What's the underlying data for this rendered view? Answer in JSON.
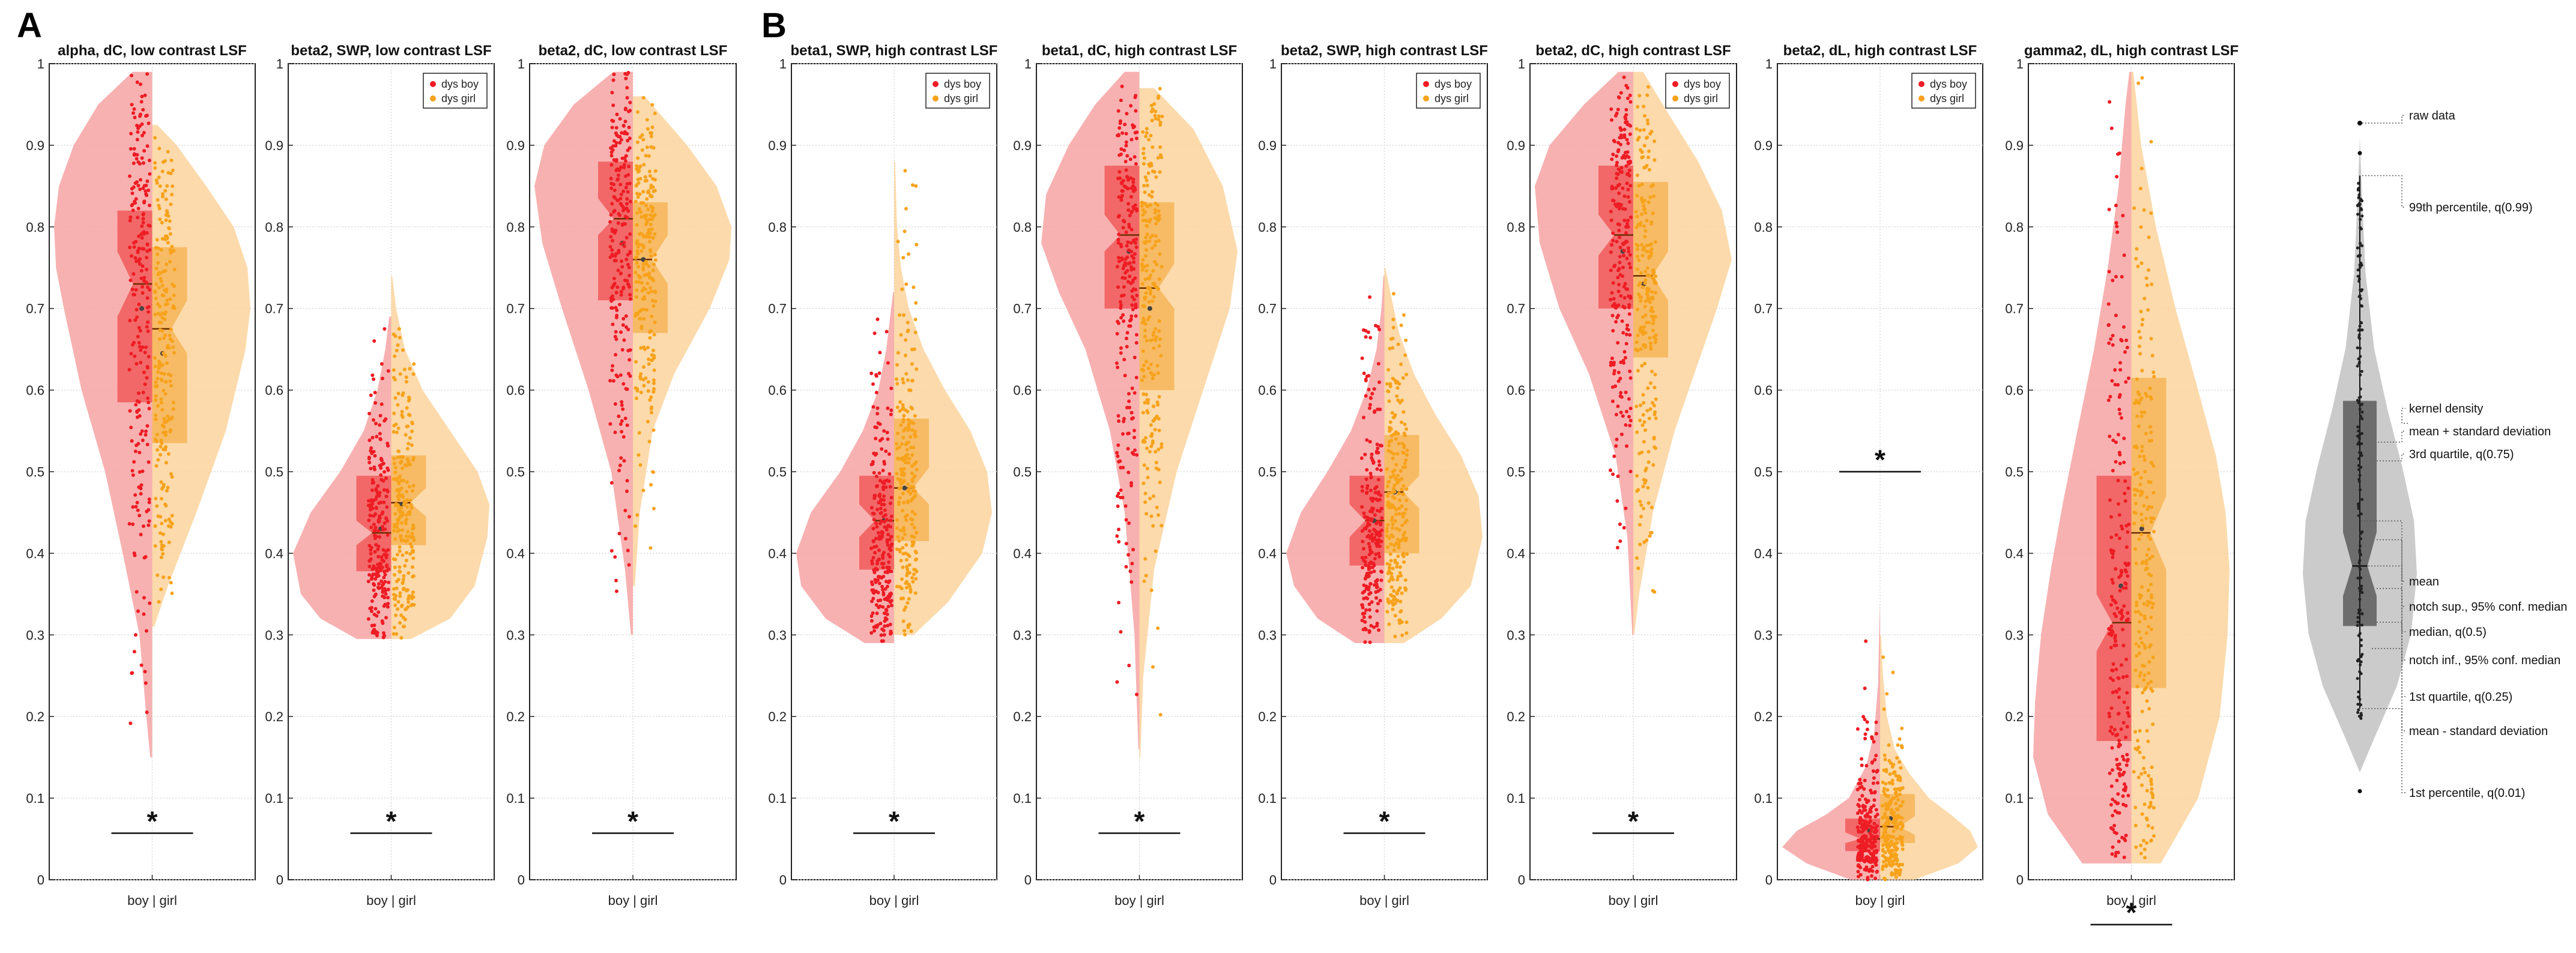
{
  "figure": {
    "panel_labels": [
      "A",
      "B"
    ]
  },
  "colors": {
    "boy": "#ee1c24",
    "girl": "#f7a21b",
    "boy_fill": "#f7a3a3",
    "girl_fill": "#fcd49c",
    "boy_box": "#f05050",
    "girl_box": "#f6b04e",
    "legend_gray": "#a9a9a9",
    "legend_dark": "#555555"
  },
  "chart_data": [
    {
      "type": "violin",
      "group": "A",
      "title": "alpha, dC, low contrast LSF",
      "xlabel": "boy | girl",
      "ylim": [
        0,
        1
      ],
      "yticks": [
        0,
        0.1,
        0.2,
        0.3,
        0.4,
        0.5,
        0.6,
        0.7,
        0.8,
        0.9,
        1
      ],
      "legend": false,
      "significance": {
        "label": "*",
        "y": 0.057
      },
      "series": [
        {
          "name": "dys boy",
          "q1": 0.585,
          "median": 0.73,
          "q3": 0.82,
          "notch_low": 0.69,
          "notch_high": 0.77,
          "mean": 0.7,
          "whisker_low": 0.35,
          "whisker_high": 0.97,
          "kde_y": [
            0.15,
            0.2,
            0.3,
            0.4,
            0.5,
            0.6,
            0.7,
            0.75,
            0.8,
            0.85,
            0.9,
            0.95,
            0.99
          ],
          "kde_w": [
            0.02,
            0.06,
            0.13,
            0.3,
            0.48,
            0.72,
            0.9,
            0.98,
            1,
            0.95,
            0.8,
            0.55,
            0.2
          ]
        },
        {
          "name": "dys girl",
          "q1": 0.535,
          "median": 0.675,
          "q3": 0.775,
          "notch_low": 0.645,
          "notch_high": 0.71,
          "mean": 0.645,
          "whisker_low": 0.3,
          "whisker_high": 0.93,
          "kde_y": [
            0.31,
            0.36,
            0.45,
            0.55,
            0.65,
            0.7,
            0.75,
            0.8,
            0.85,
            0.9,
            0.925
          ],
          "kde_w": [
            0.02,
            0.16,
            0.45,
            0.75,
            0.95,
            1,
            0.97,
            0.83,
            0.55,
            0.25,
            0.05
          ]
        }
      ]
    },
    {
      "type": "violin",
      "group": "A",
      "title": "beta2, SWP, low contrast LSF",
      "xlabel": "boy | girl",
      "ylim": [
        0,
        1
      ],
      "yticks": [
        0,
        0.1,
        0.2,
        0.3,
        0.4,
        0.5,
        0.6,
        0.7,
        0.8,
        0.9,
        1
      ],
      "legend": true,
      "significance": {
        "label": "*",
        "y": 0.057
      },
      "series": [
        {
          "name": "dys boy",
          "q1": 0.378,
          "median": 0.425,
          "q3": 0.495,
          "notch_low": 0.41,
          "notch_high": 0.44,
          "mean": 0.43,
          "whisker_low": 0.29,
          "whisker_high": 0.62,
          "kde_y": [
            0.295,
            0.32,
            0.35,
            0.4,
            0.45,
            0.5,
            0.55,
            0.6,
            0.65,
            0.69
          ],
          "kde_w": [
            0.35,
            0.72,
            0.92,
            1,
            0.82,
            0.52,
            0.28,
            0.14,
            0.06,
            0.02
          ]
        },
        {
          "name": "dys girl",
          "q1": 0.41,
          "median": 0.462,
          "q3": 0.52,
          "notch_low": 0.445,
          "notch_high": 0.48,
          "mean": 0.46,
          "whisker_low": 0.3,
          "whisker_high": 0.65,
          "kde_y": [
            0.295,
            0.32,
            0.36,
            0.42,
            0.46,
            0.5,
            0.55,
            0.6,
            0.65,
            0.7,
            0.74
          ],
          "kde_w": [
            0.2,
            0.6,
            0.85,
            0.98,
            1,
            0.88,
            0.6,
            0.32,
            0.14,
            0.05,
            0.01
          ]
        }
      ]
    },
    {
      "type": "violin",
      "group": "A",
      "title": "beta2, dC, low contrast LSF",
      "xlabel": "boy | girl",
      "ylim": [
        0,
        1
      ],
      "yticks": [
        0,
        0.1,
        0.2,
        0.3,
        0.4,
        0.5,
        0.6,
        0.7,
        0.8,
        0.9,
        1
      ],
      "legend": false,
      "significance": {
        "label": "*",
        "y": 0.057
      },
      "series": [
        {
          "name": "dys boy",
          "q1": 0.71,
          "median": 0.81,
          "q3": 0.88,
          "notch_low": 0.79,
          "notch_high": 0.835,
          "mean": 0.78,
          "whisker_low": 0.45,
          "whisker_high": 0.98,
          "kde_y": [
            0.3,
            0.38,
            0.5,
            0.6,
            0.7,
            0.78,
            0.85,
            0.9,
            0.95,
            0.99
          ],
          "kde_w": [
            0.02,
            0.08,
            0.22,
            0.45,
            0.72,
            0.92,
            1,
            0.9,
            0.6,
            0.2
          ]
        },
        {
          "name": "dys girl",
          "q1": 0.67,
          "median": 0.76,
          "q3": 0.83,
          "notch_low": 0.73,
          "notch_high": 0.79,
          "mean": 0.76,
          "whisker_low": 0.4,
          "whisker_high": 0.96,
          "kde_y": [
            0.36,
            0.45,
            0.55,
            0.62,
            0.7,
            0.76,
            0.8,
            0.85,
            0.9,
            0.96
          ],
          "kde_w": [
            0.02,
            0.07,
            0.2,
            0.42,
            0.78,
            0.98,
            1,
            0.85,
            0.55,
            0.12
          ]
        }
      ]
    },
    {
      "type": "violin",
      "group": "B",
      "title": "beta1, SWP, high contrast LSF",
      "xlabel": "boy | girl",
      "ylim": [
        0,
        1
      ],
      "yticks": [
        0,
        0.1,
        0.2,
        0.3,
        0.4,
        0.5,
        0.6,
        0.7,
        0.8,
        0.9,
        1
      ],
      "legend": true,
      "significance": {
        "label": "*",
        "y": 0.057
      },
      "series": [
        {
          "name": "dys boy",
          "q1": 0.38,
          "median": 0.44,
          "q3": 0.495,
          "notch_low": 0.42,
          "notch_high": 0.46,
          "mean": 0.44,
          "whisker_low": 0.29,
          "whisker_high": 0.65,
          "kde_y": [
            0.29,
            0.32,
            0.36,
            0.4,
            0.45,
            0.5,
            0.55,
            0.6,
            0.65,
            0.7,
            0.72
          ],
          "kde_w": [
            0.3,
            0.7,
            0.95,
            1,
            0.85,
            0.55,
            0.32,
            0.16,
            0.08,
            0.03,
            0.01
          ]
        },
        {
          "name": "dys girl",
          "q1": 0.415,
          "median": 0.48,
          "q3": 0.565,
          "notch_low": 0.46,
          "notch_high": 0.505,
          "mean": 0.48,
          "whisker_low": 0.3,
          "whisker_high": 0.72,
          "kde_y": [
            0.3,
            0.34,
            0.4,
            0.45,
            0.5,
            0.55,
            0.6,
            0.65,
            0.7,
            0.75,
            0.8,
            0.88
          ],
          "kde_w": [
            0.2,
            0.55,
            0.9,
            1,
            0.95,
            0.78,
            0.52,
            0.3,
            0.15,
            0.07,
            0.03,
            0.01
          ]
        }
      ]
    },
    {
      "type": "violin",
      "group": "B",
      "title": "beta1, dC, high contrast LSF",
      "xlabel": "boy | girl",
      "ylim": [
        0,
        1
      ],
      "yticks": [
        0,
        0.1,
        0.2,
        0.3,
        0.4,
        0.5,
        0.6,
        0.7,
        0.8,
        0.9,
        1
      ],
      "legend": false,
      "significance": {
        "label": "*",
        "y": 0.057
      },
      "series": [
        {
          "name": "dys boy",
          "q1": 0.7,
          "median": 0.79,
          "q3": 0.875,
          "notch_low": 0.77,
          "notch_high": 0.815,
          "mean": 0.77,
          "whisker_low": 0.45,
          "whisker_high": 0.98,
          "kde_y": [
            0.16,
            0.3,
            0.45,
            0.55,
            0.65,
            0.72,
            0.78,
            0.84,
            0.9,
            0.95,
            0.99
          ],
          "kde_w": [
            0.01,
            0.05,
            0.15,
            0.3,
            0.55,
            0.82,
            1,
            0.95,
            0.72,
            0.45,
            0.15
          ]
        },
        {
          "name": "dys girl",
          "q1": 0.6,
          "median": 0.725,
          "q3": 0.83,
          "notch_low": 0.7,
          "notch_high": 0.755,
          "mean": 0.7,
          "whisker_low": 0.35,
          "whisker_high": 0.97,
          "kde_y": [
            0.15,
            0.25,
            0.38,
            0.5,
            0.6,
            0.7,
            0.77,
            0.85,
            0.92,
            0.97
          ],
          "kde_w": [
            0.01,
            0.04,
            0.15,
            0.38,
            0.65,
            0.92,
            1,
            0.85,
            0.55,
            0.15
          ]
        }
      ]
    },
    {
      "type": "violin",
      "group": "B",
      "title": "beta2, SWP, high contrast LSF",
      "xlabel": "boy | girl",
      "ylim": [
        0,
        1
      ],
      "yticks": [
        0,
        0.1,
        0.2,
        0.3,
        0.4,
        0.5,
        0.6,
        0.7,
        0.8,
        0.9,
        1
      ],
      "legend": true,
      "significance": {
        "label": "*",
        "y": 0.057
      },
      "series": [
        {
          "name": "dys boy",
          "q1": 0.385,
          "median": 0.44,
          "q3": 0.495,
          "notch_low": 0.42,
          "notch_high": 0.46,
          "mean": 0.44,
          "whisker_low": 0.29,
          "whisker_high": 0.62,
          "kde_y": [
            0.29,
            0.32,
            0.36,
            0.4,
            0.45,
            0.5,
            0.55,
            0.6,
            0.65,
            0.7,
            0.74
          ],
          "kde_w": [
            0.3,
            0.68,
            0.92,
            1,
            0.85,
            0.58,
            0.34,
            0.18,
            0.08,
            0.03,
            0.01
          ]
        },
        {
          "name": "dys girl",
          "q1": 0.4,
          "median": 0.475,
          "q3": 0.545,
          "notch_low": 0.455,
          "notch_high": 0.495,
          "mean": 0.475,
          "whisker_low": 0.29,
          "whisker_high": 0.69,
          "kde_y": [
            0.29,
            0.32,
            0.36,
            0.42,
            0.47,
            0.52,
            0.57,
            0.62,
            0.67,
            0.72,
            0.75
          ],
          "kde_w": [
            0.2,
            0.58,
            0.88,
            1,
            0.96,
            0.78,
            0.52,
            0.3,
            0.15,
            0.06,
            0.01
          ]
        }
      ]
    },
    {
      "type": "violin",
      "group": "B",
      "title": "beta2, dC, high contrast LSF",
      "xlabel": "boy | girl",
      "ylim": [
        0,
        1
      ],
      "yticks": [
        0,
        0.1,
        0.2,
        0.3,
        0.4,
        0.5,
        0.6,
        0.7,
        0.8,
        0.9,
        1
      ],
      "legend": true,
      "significance": {
        "label": "*",
        "y": 0.057
      },
      "series": [
        {
          "name": "dys boy",
          "q1": 0.7,
          "median": 0.79,
          "q3": 0.875,
          "notch_low": 0.765,
          "notch_high": 0.815,
          "mean": 0.77,
          "whisker_low": 0.45,
          "whisker_high": 0.99,
          "kde_y": [
            0.3,
            0.42,
            0.52,
            0.62,
            0.7,
            0.78,
            0.85,
            0.9,
            0.95,
            0.99
          ],
          "kde_w": [
            0.01,
            0.06,
            0.18,
            0.45,
            0.75,
            0.95,
            1,
            0.85,
            0.5,
            0.15
          ]
        },
        {
          "name": "dys girl",
          "q1": 0.64,
          "median": 0.74,
          "q3": 0.855,
          "notch_low": 0.71,
          "notch_high": 0.77,
          "mean": 0.73,
          "whisker_low": 0.33,
          "whisker_high": 0.99,
          "kde_y": [
            0.3,
            0.35,
            0.45,
            0.55,
            0.62,
            0.7,
            0.76,
            0.82,
            0.88,
            0.94,
            0.99
          ],
          "kde_w": [
            0.01,
            0.06,
            0.2,
            0.42,
            0.62,
            0.85,
            1,
            0.9,
            0.66,
            0.35,
            0.1
          ]
        }
      ]
    },
    {
      "type": "violin",
      "group": "B",
      "title": "beta2, dL, high contrast LSF",
      "xlabel": "boy | girl",
      "ylim": [
        0,
        1
      ],
      "yticks": [
        0,
        0.1,
        0.2,
        0.3,
        0.4,
        0.5,
        0.6,
        0.7,
        0.8,
        0.9,
        1
      ],
      "legend": true,
      "significance": {
        "label": "*",
        "y": 0.5
      },
      "series": [
        {
          "name": "dys boy",
          "q1": 0.035,
          "median": 0.05,
          "q3": 0.075,
          "notch_low": 0.045,
          "notch_high": 0.058,
          "mean": 0.06,
          "whisker_low": 0.0,
          "whisker_high": 0.13,
          "kde_y": [
            0.0,
            0.02,
            0.04,
            0.06,
            0.08,
            0.1,
            0.14,
            0.18,
            0.24,
            0.3,
            0.34
          ],
          "kde_w": [
            0.3,
            0.75,
            1,
            0.85,
            0.55,
            0.32,
            0.14,
            0.06,
            0.02,
            0.01,
            0.0
          ]
        },
        {
          "name": "dys girl",
          "q1": 0.045,
          "median": 0.065,
          "q3": 0.105,
          "notch_low": 0.055,
          "notch_high": 0.078,
          "mean": 0.075,
          "whisker_low": 0.0,
          "whisker_high": 0.17,
          "kde_y": [
            0.0,
            0.02,
            0.04,
            0.06,
            0.08,
            0.1,
            0.13,
            0.16,
            0.2,
            0.25,
            0.3
          ],
          "kde_w": [
            0.35,
            0.8,
            1,
            0.92,
            0.72,
            0.5,
            0.3,
            0.15,
            0.07,
            0.03,
            0.01
          ]
        }
      ]
    },
    {
      "type": "violin",
      "group": "B",
      "title": "gamma2, dL, high contrast LSF",
      "xlabel": "boy | girl",
      "ylim": [
        0,
        1
      ],
      "yticks": [
        0,
        0.1,
        0.2,
        0.3,
        0.4,
        0.5,
        0.6,
        0.7,
        0.8,
        0.9,
        1
      ],
      "legend": false,
      "significance": {
        "label": "*",
        "y": -0.055
      },
      "series": [
        {
          "name": "dys boy",
          "q1": 0.17,
          "median": 0.315,
          "q3": 0.495,
          "notch_low": 0.28,
          "notch_high": 0.35,
          "mean": 0.36,
          "whisker_low": 0.02,
          "whisker_high": 0.97,
          "kde_y": [
            0.02,
            0.08,
            0.15,
            0.22,
            0.3,
            0.38,
            0.46,
            0.55,
            0.65,
            0.75,
            0.85,
            0.95,
            0.99
          ],
          "kde_w": [
            0.5,
            0.85,
            1,
            0.98,
            0.92,
            0.82,
            0.7,
            0.55,
            0.38,
            0.24,
            0.13,
            0.06,
            0.02
          ]
        },
        {
          "name": "dys girl",
          "q1": 0.235,
          "median": 0.425,
          "q3": 0.615,
          "notch_low": 0.38,
          "notch_high": 0.47,
          "mean": 0.43,
          "whisker_low": 0.02,
          "whisker_high": 0.99,
          "kde_y": [
            0.02,
            0.1,
            0.2,
            0.3,
            0.38,
            0.45,
            0.52,
            0.6,
            0.7,
            0.8,
            0.9,
            0.99
          ],
          "kde_w": [
            0.3,
            0.68,
            0.9,
            0.98,
            1,
            0.96,
            0.86,
            0.68,
            0.45,
            0.25,
            0.1,
            0.02
          ]
        }
      ]
    }
  ],
  "legend_items": [
    "dys boy",
    "dys girl"
  ],
  "explainer": {
    "labels": {
      "raw": "raw data",
      "p99": "99th percentile, q(0.99)",
      "kde": "kernel density",
      "mean_sd_up": "mean + standard deviation",
      "q3": "3rd quartile, q(0.75)",
      "mean": "mean",
      "notch_sup": "notch sup., 95% conf. median",
      "median": "median, q(0.5)",
      "notch_inf": "notch inf., 95% conf. median",
      "q1": "1st quartile, q(0.25)",
      "mean_sd_down": "mean - standard deviation",
      "p01": "1st percentile, q(0.01)"
    }
  }
}
